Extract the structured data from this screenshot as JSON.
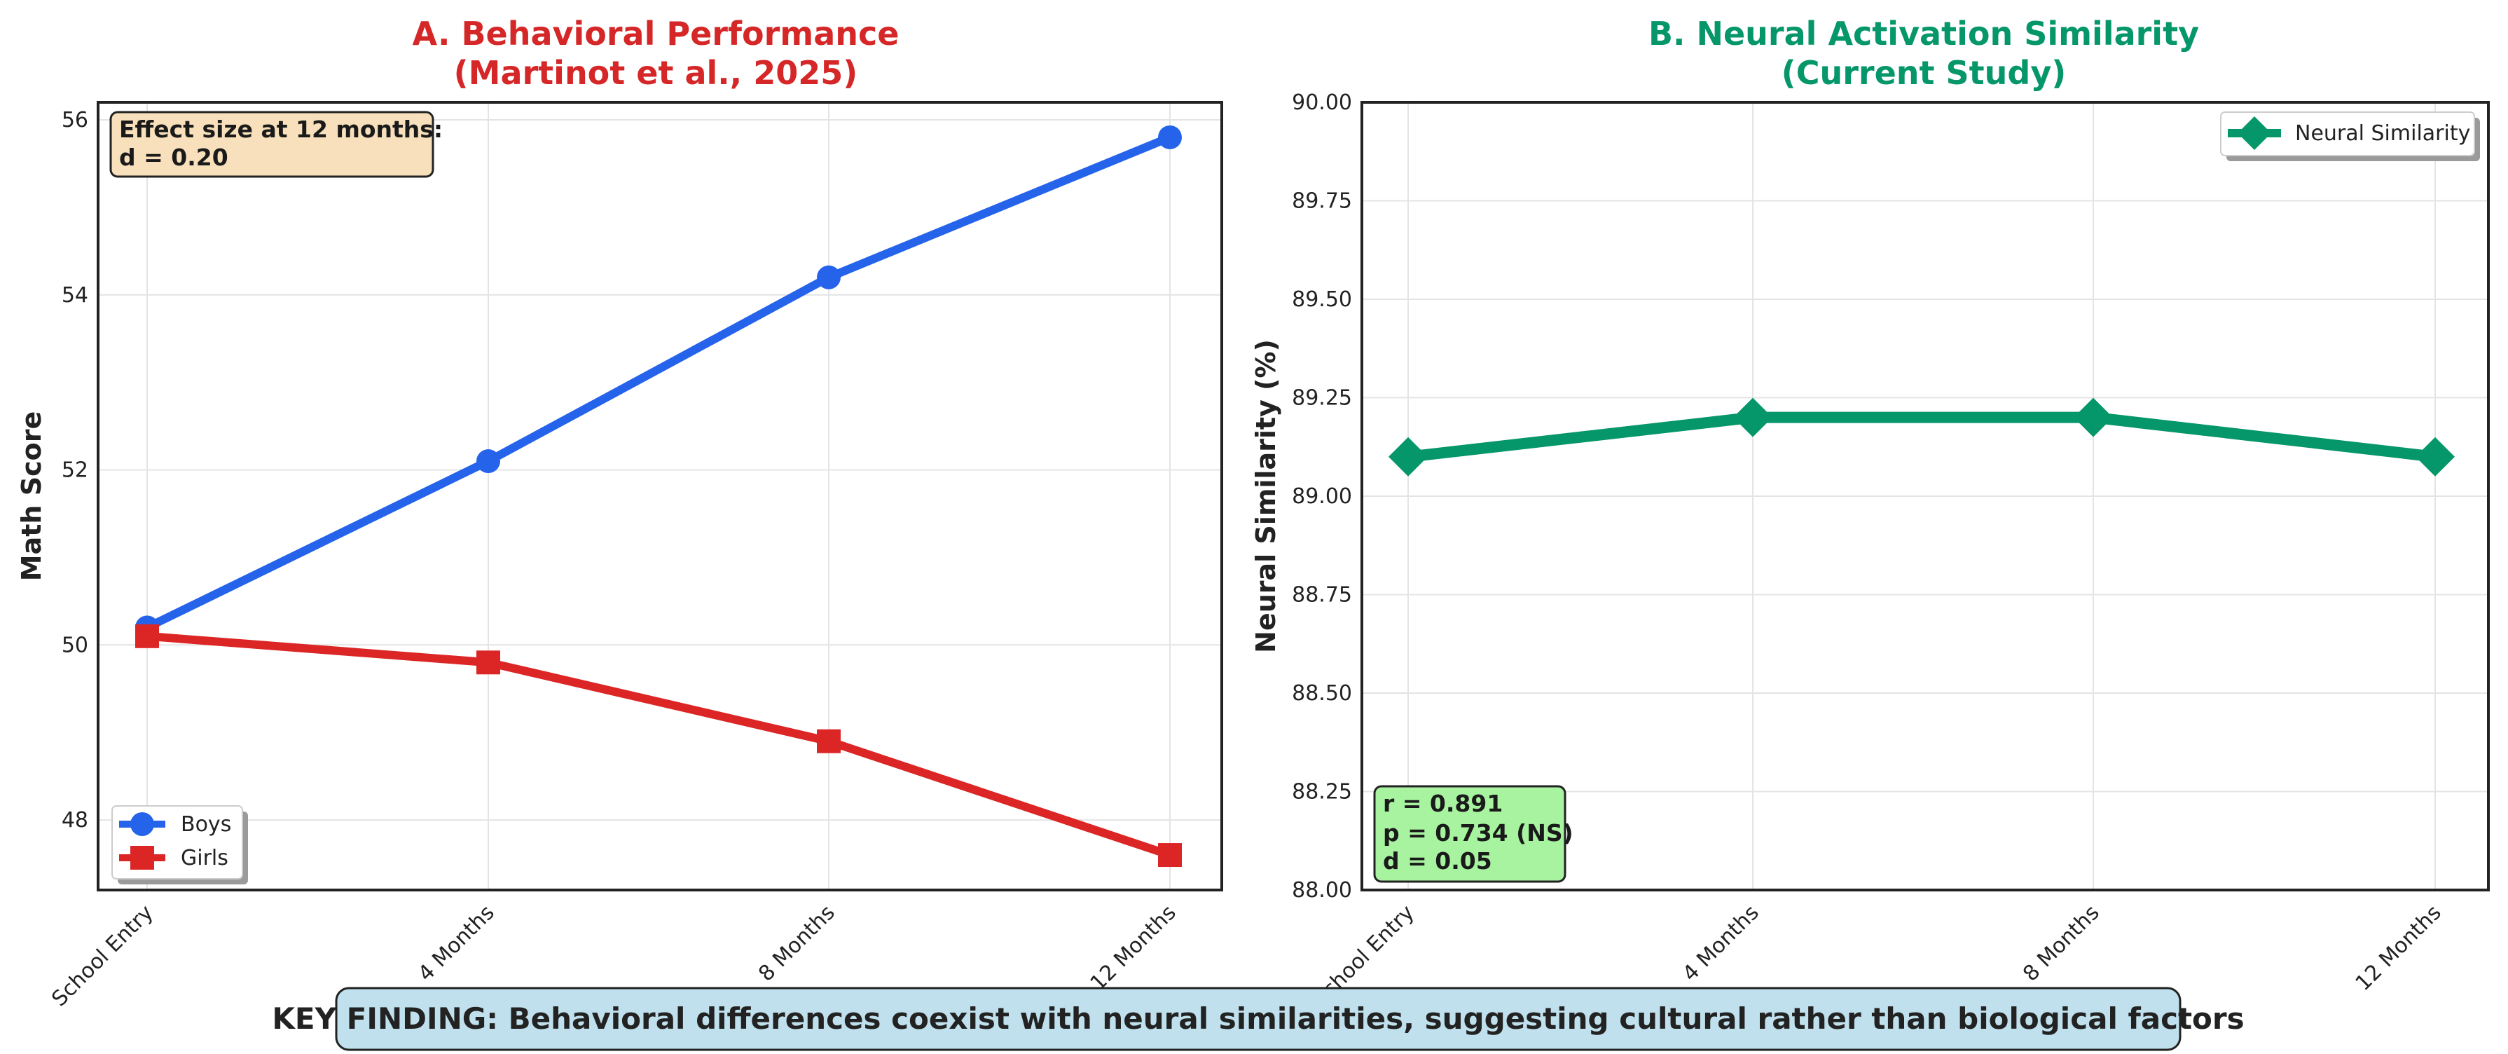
{
  "chart_data": [
    {
      "type": "line",
      "title_line1": "A. Behavioral Performance",
      "title_line2": "(Martinot et al., 2025)",
      "title_color": "#d62728",
      "xlabel": "",
      "ylabel": "Math Score",
      "categories": [
        "School Entry",
        "4 Months",
        "8 Months",
        "12 Months"
      ],
      "yticks": [
        48,
        50,
        52,
        54,
        56
      ],
      "ylim": [
        47.2,
        56.2
      ],
      "series": [
        {
          "name": "Boys",
          "color": "#2563eb",
          "marker": "circle",
          "values": [
            50.2,
            52.1,
            54.2,
            55.8
          ]
        },
        {
          "name": "Girls",
          "color": "#dc2626",
          "marker": "square",
          "values": [
            50.1,
            49.8,
            48.9,
            47.6
          ]
        }
      ],
      "annotation": {
        "lines": [
          "Effect size at 12 months:",
          "d = 0.20"
        ],
        "bg": "#f7e0bb"
      },
      "legend_position": "lower-left",
      "grid": true
    },
    {
      "type": "line",
      "title_line1": "B. Neural Activation Similarity",
      "title_line2": "(Current Study)",
      "title_color": "#059669",
      "xlabel": "",
      "ylabel": "Neural Similarity (%)",
      "categories": [
        "School Entry",
        "4 Months",
        "8 Months",
        "12 Months"
      ],
      "yticks": [
        "88.00",
        "88.25",
        "88.50",
        "88.75",
        "89.00",
        "89.25",
        "89.50",
        "89.75",
        "90.00"
      ],
      "ylim": [
        88.0,
        90.0
      ],
      "series": [
        {
          "name": "Neural Similarity",
          "color": "#059669",
          "marker": "diamond",
          "values": [
            89.1,
            89.2,
            89.2,
            89.1
          ]
        }
      ],
      "annotation": {
        "lines": [
          "r = 0.891",
          "p = 0.734 (NS)",
          "d = 0.05"
        ],
        "bg": "#a7f3a0"
      },
      "legend_position": "upper-right",
      "grid": true
    }
  ],
  "key_finding": {
    "text": "KEY FINDING: Behavioral differences coexist with neural similarities, suggesting cultural rather than biological factors",
    "bg": "#bfe0ec"
  }
}
